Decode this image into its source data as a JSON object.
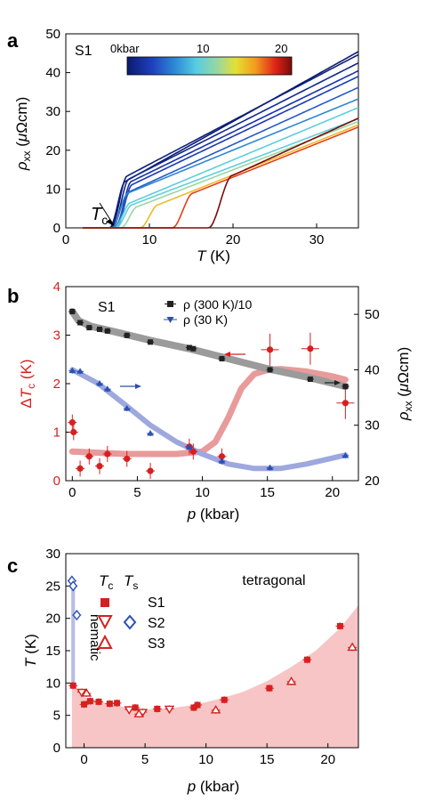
{
  "chart_data": [
    {
      "type": "line",
      "panel": "a",
      "sample": "S1",
      "xlabel": "T (K)",
      "ylabel": "ρxx (μΩcm)",
      "xlim": [
        0,
        35
      ],
      "ylim": [
        0,
        50
      ],
      "xticks": [
        0,
        10,
        20,
        30
      ],
      "yticks": [
        0,
        10,
        20,
        30,
        40,
        50
      ],
      "colorbar": {
        "label_left": "0kbar",
        "label_mid": "10",
        "label_right": "20",
        "min": 0,
        "max": 21
      },
      "annotation": "Tc",
      "series": [
        {
          "p": 0.0,
          "Tc": 6.2,
          "rho_onset": 12.0,
          "slope": 1.2
        },
        {
          "p": 0.5,
          "Tc": 6.4,
          "rho_onset": 13.4,
          "slope": 1.13
        },
        {
          "p": 1.2,
          "Tc": 6.6,
          "rho_onset": 12.6,
          "slope": 1.09
        },
        {
          "p": 2.1,
          "Tc": 6.9,
          "rho_onset": 12.0,
          "slope": 1.05
        },
        {
          "p": 2.7,
          "Tc": 7.0,
          "rho_onset": 11.2,
          "slope": 1.03
        },
        {
          "p": 4.2,
          "Tc": 6.8,
          "rho_onset": 9.5,
          "slope": 0.98
        },
        {
          "p": 6.0,
          "Tc": 6.5,
          "rho_onset": 9.0,
          "slope": 0.88
        },
        {
          "p": 9.0,
          "Tc": 6.8,
          "rho_onset": 6.5,
          "slope": 0.9
        },
        {
          "p": 9.3,
          "Tc": 7.0,
          "rho_onset": 6.0,
          "slope": 0.82
        },
        {
          "p": 11.5,
          "Tc": 7.6,
          "rho_onset": 5.5,
          "slope": 0.83
        },
        {
          "p": 15.2,
          "Tc": 10.0,
          "rho_onset": 6.0,
          "slope": 0.86
        },
        {
          "p": 18.3,
          "Tc": 14.0,
          "rho_onset": 9.0,
          "slope": 0.86
        },
        {
          "p": 21.0,
          "Tc": 18.5,
          "rho_onset": 13.5,
          "slope": 0.98
        }
      ]
    },
    {
      "type": "scatter",
      "panel": "b",
      "sample": "S1",
      "xlabel": "p (kbar)",
      "ylabel_left": "ΔTc (K)",
      "ylabel_right": "ρxx (μΩcm)",
      "xlim": [
        -0.5,
        22
      ],
      "ylim_left": [
        0,
        4
      ],
      "ylim_right": [
        20,
        55
      ],
      "xticks": [
        0,
        5,
        10,
        15,
        20
      ],
      "yticks_left": [
        0,
        1,
        2,
        3,
        4
      ],
      "yticks_right": [
        20,
        30,
        40,
        50
      ],
      "legend": [
        "ρ (300 K)/10",
        "ρ (30 K)"
      ],
      "series": [
        {
          "name": "ΔTc",
          "color": "#d62020",
          "x": [
            0.0,
            0.1,
            0.6,
            1.3,
            2.1,
            2.7,
            4.2,
            6.0,
            9.0,
            9.3,
            11.5,
            15.2,
            18.3,
            21.0
          ],
          "y": [
            1.2,
            1.0,
            0.25,
            0.5,
            0.3,
            0.55,
            0.45,
            0.2,
            0.7,
            0.6,
            0.5,
            2.7,
            2.72,
            1.6
          ],
          "fit_x": [
            0,
            4,
            8,
            10,
            11,
            12,
            13,
            14,
            15,
            16,
            18,
            20,
            21
          ],
          "fit_y": [
            0.6,
            0.55,
            0.55,
            0.6,
            0.8,
            1.3,
            1.9,
            2.2,
            2.28,
            2.3,
            2.25,
            2.15,
            2.08
          ]
        },
        {
          "name": "ρ (300 K)/10",
          "color": "#222222",
          "x": [
            0.0,
            0.6,
            1.3,
            2.1,
            2.7,
            4.2,
            6.0,
            9.0,
            9.3,
            11.5,
            15.2,
            18.3,
            21.0
          ],
          "y": [
            50.5,
            48.5,
            47.6,
            47.3,
            47.0,
            46.2,
            45.0,
            44.0,
            43.8,
            42.0,
            40.0,
            38.3,
            37.0
          ],
          "fit_x": [
            0,
            0.5,
            1.5,
            3,
            6,
            9,
            12,
            15,
            18,
            21
          ],
          "fit_y": [
            50.5,
            48.8,
            47.8,
            47.0,
            45.3,
            43.8,
            42.0,
            40.2,
            38.7,
            37.0
          ]
        },
        {
          "name": "ρ (30 K)",
          "color": "#2b4fb3",
          "x": [
            0.0,
            0.6,
            2.1,
            2.7,
            4.2,
            6.0,
            9.0,
            11.5,
            15.2,
            21.0
          ],
          "y": [
            39.8,
            39.7,
            37.5,
            36.5,
            33.0,
            28.5,
            26.0,
            23.5,
            22.3,
            24.5
          ],
          "fit_x": [
            0,
            2,
            4,
            6,
            8,
            10,
            12,
            14,
            16,
            18,
            21
          ],
          "fit_y": [
            40.0,
            37.5,
            33.8,
            30.0,
            27.0,
            24.8,
            23.0,
            22.2,
            22.2,
            23.0,
            24.6
          ]
        }
      ]
    },
    {
      "type": "scatter",
      "panel": "c",
      "xlabel": "p (kbar)",
      "ylabel": "T (K)",
      "xlim": [
        -1.5,
        22.5
      ],
      "ylim": [
        0,
        30
      ],
      "xticks": [
        0,
        5,
        10,
        15,
        20
      ],
      "yticks": [
        0,
        5,
        10,
        15,
        20,
        25,
        30
      ],
      "labels": [
        "tetragonal",
        "nematic"
      ],
      "legend_header": [
        "Tc",
        "Ts"
      ],
      "legend": [
        "S1",
        "S2",
        "S3"
      ],
      "series": [
        {
          "name": "S1",
          "marker": "square",
          "color": "#d62020",
          "x": [
            -0.9,
            0.0,
            0.5,
            1.2,
            2.1,
            2.7,
            4.2,
            6.0,
            9.0,
            9.3,
            11.5,
            15.2,
            18.3,
            21.0
          ],
          "y": [
            9.6,
            6.7,
            7.2,
            7.1,
            6.8,
            6.9,
            6.2,
            6.0,
            6.2,
            6.6,
            7.4,
            9.2,
            13.6,
            18.8
          ]
        },
        {
          "name": "S2",
          "marker": "triangle-down",
          "color": "#d62020",
          "x": [
            -0.2,
            3.7,
            4.8,
            7.0
          ],
          "y": [
            8.6,
            5.9,
            5.5,
            6.0
          ]
        },
        {
          "name": "S3",
          "marker": "triangle-up",
          "color": "#d62020",
          "x": [
            0.2,
            4.5,
            10.8,
            17.0,
            22.0
          ],
          "y": [
            8.4,
            5.2,
            5.8,
            10.2,
            15.5
          ]
        },
        {
          "name": "S2 Ts",
          "marker": "diamond",
          "color": "#2b4fb3",
          "x": [
            -1.0,
            -0.9,
            -0.6
          ],
          "y": [
            25.8,
            25.0,
            20.5
          ]
        }
      ],
      "boundary_x": [
        -1.0,
        0,
        2,
        4,
        5,
        7,
        9,
        11,
        13,
        15,
        17,
        19,
        21,
        22.5
      ],
      "boundary_y": [
        10.0,
        7.8,
        6.8,
        6.0,
        5.9,
        6.1,
        6.6,
        7.5,
        8.6,
        10.3,
        12.5,
        15.0,
        18.5,
        22.0
      ]
    }
  ]
}
